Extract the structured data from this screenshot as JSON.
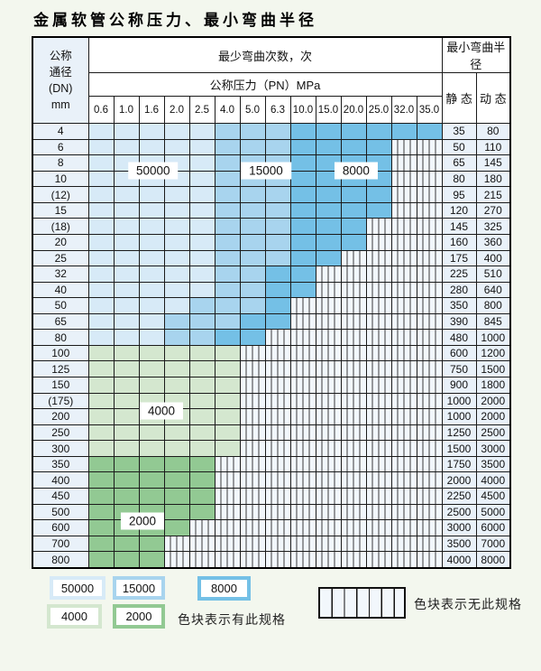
{
  "title": "金属软管公称压力、最小弯曲半径",
  "table": {
    "corner_header": "公称\n通径\n(DN)\nmm",
    "bend_cycles_header": "最少弯曲次数，次",
    "pn_header": "公称压力（PN）MPa",
    "min_radius_header": "最小弯曲半径",
    "static_header": "静 态",
    "dynamic_header": "动 态",
    "pn_columns": [
      "0.6",
      "1.0",
      "1.6",
      "2.0",
      "2.5",
      "4.0",
      "5.0",
      "6.3",
      "10.0",
      "15.0",
      "20.0",
      "25.0",
      "32.0",
      "35.0"
    ],
    "rows": [
      {
        "dn": "4",
        "static": "35",
        "dynamic": "80",
        "grades": [
          [
            "50000",
            5
          ],
          [
            "15000",
            3
          ],
          [
            "8000",
            6
          ]
        ]
      },
      {
        "dn": "6",
        "static": "50",
        "dynamic": "110",
        "grades": [
          [
            "50000",
            5
          ],
          [
            "15000",
            3
          ],
          [
            "8000",
            4
          ],
          [
            "none",
            2
          ]
        ]
      },
      {
        "dn": "8",
        "static": "65",
        "dynamic": "145",
        "grades": [
          [
            "50000",
            5
          ],
          [
            "15000",
            3
          ],
          [
            "8000",
            4
          ],
          [
            "none",
            2
          ]
        ]
      },
      {
        "dn": "10",
        "static": "80",
        "dynamic": "180",
        "grades": [
          [
            "50000",
            5
          ],
          [
            "15000",
            3
          ],
          [
            "8000",
            4
          ],
          [
            "none",
            2
          ]
        ]
      },
      {
        "dn": "(12)",
        "static": "95",
        "dynamic": "215",
        "grades": [
          [
            "50000",
            5
          ],
          [
            "15000",
            3
          ],
          [
            "8000",
            4
          ],
          [
            "none",
            2
          ]
        ]
      },
      {
        "dn": "15",
        "static": "120",
        "dynamic": "270",
        "grades": [
          [
            "50000",
            5
          ],
          [
            "15000",
            3
          ],
          [
            "8000",
            4
          ],
          [
            "none",
            2
          ]
        ]
      },
      {
        "dn": "(18)",
        "static": "145",
        "dynamic": "325",
        "grades": [
          [
            "50000",
            5
          ],
          [
            "15000",
            3
          ],
          [
            "8000",
            3
          ],
          [
            "none",
            3
          ]
        ]
      },
      {
        "dn": "20",
        "static": "160",
        "dynamic": "360",
        "grades": [
          [
            "50000",
            5
          ],
          [
            "15000",
            3
          ],
          [
            "8000",
            3
          ],
          [
            "none",
            3
          ]
        ]
      },
      {
        "dn": "25",
        "static": "175",
        "dynamic": "400",
        "grades": [
          [
            "50000",
            5
          ],
          [
            "15000",
            3
          ],
          [
            "8000",
            2
          ],
          [
            "none",
            4
          ]
        ]
      },
      {
        "dn": "32",
        "static": "225",
        "dynamic": "510",
        "grades": [
          [
            "50000",
            5
          ],
          [
            "15000",
            2
          ],
          [
            "8000",
            2
          ],
          [
            "none",
            5
          ]
        ]
      },
      {
        "dn": "40",
        "static": "280",
        "dynamic": "640",
        "grades": [
          [
            "50000",
            5
          ],
          [
            "15000",
            2
          ],
          [
            "8000",
            2
          ],
          [
            "none",
            5
          ]
        ]
      },
      {
        "dn": "50",
        "static": "350",
        "dynamic": "800",
        "grades": [
          [
            "50000",
            4
          ],
          [
            "15000",
            3
          ],
          [
            "8000",
            1
          ],
          [
            "none",
            6
          ]
        ]
      },
      {
        "dn": "65",
        "static": "390",
        "dynamic": "845",
        "grades": [
          [
            "50000",
            3
          ],
          [
            "15000",
            3
          ],
          [
            "8000",
            2
          ],
          [
            "none",
            6
          ]
        ]
      },
      {
        "dn": "80",
        "static": "480",
        "dynamic": "1000",
        "grades": [
          [
            "50000",
            3
          ],
          [
            "15000",
            2
          ],
          [
            "8000",
            2
          ],
          [
            "none",
            7
          ]
        ]
      },
      {
        "dn": "100",
        "static": "600",
        "dynamic": "1200",
        "grades": [
          [
            "4000",
            6
          ],
          [
            "none",
            8
          ]
        ]
      },
      {
        "dn": "125",
        "static": "750",
        "dynamic": "1500",
        "grades": [
          [
            "4000",
            6
          ],
          [
            "none",
            8
          ]
        ]
      },
      {
        "dn": "150",
        "static": "900",
        "dynamic": "1800",
        "grades": [
          [
            "4000",
            6
          ],
          [
            "none",
            8
          ]
        ]
      },
      {
        "dn": "(175)",
        "static": "1000",
        "dynamic": "2000",
        "grades": [
          [
            "4000",
            6
          ],
          [
            "none",
            8
          ]
        ]
      },
      {
        "dn": "200",
        "static": "1000",
        "dynamic": "2000",
        "grades": [
          [
            "4000",
            6
          ],
          [
            "none",
            8
          ]
        ]
      },
      {
        "dn": "250",
        "static": "1250",
        "dynamic": "2500",
        "grades": [
          [
            "4000",
            6
          ],
          [
            "none",
            8
          ]
        ]
      },
      {
        "dn": "300",
        "static": "1500",
        "dynamic": "3000",
        "grades": [
          [
            "4000",
            6
          ],
          [
            "none",
            8
          ]
        ]
      },
      {
        "dn": "350",
        "static": "1750",
        "dynamic": "3500",
        "grades": [
          [
            "2000",
            5
          ],
          [
            "none",
            9
          ]
        ]
      },
      {
        "dn": "400",
        "static": "2000",
        "dynamic": "4000",
        "grades": [
          [
            "2000",
            5
          ],
          [
            "none",
            9
          ]
        ]
      },
      {
        "dn": "450",
        "static": "2250",
        "dynamic": "4500",
        "grades": [
          [
            "2000",
            5
          ],
          [
            "none",
            9
          ]
        ]
      },
      {
        "dn": "500",
        "static": "2500",
        "dynamic": "5000",
        "grades": [
          [
            "2000",
            5
          ],
          [
            "none",
            9
          ]
        ]
      },
      {
        "dn": "600",
        "static": "3000",
        "dynamic": "6000",
        "grades": [
          [
            "2000",
            4
          ],
          [
            "none",
            10
          ]
        ]
      },
      {
        "dn": "700",
        "static": "3500",
        "dynamic": "7000",
        "grades": [
          [
            "2000",
            3
          ],
          [
            "none",
            11
          ]
        ]
      },
      {
        "dn": "800",
        "static": "4000",
        "dynamic": "8000",
        "grades": [
          [
            "2000",
            3
          ],
          [
            "none",
            11
          ]
        ]
      }
    ],
    "annotations": [
      {
        "text": "50000",
        "col": 2.6,
        "row": 3.88
      },
      {
        "text": "15000",
        "col": 7.07,
        "row": 3.88
      },
      {
        "text": "8000",
        "col": 10.64,
        "row": 3.88
      },
      {
        "text": "4000",
        "col": 2.93,
        "row": 18.43
      },
      {
        "text": "2000",
        "col": 2.18,
        "row": 25.1
      }
    ]
  },
  "legend": {
    "grade_swatches": [
      {
        "label": "50000"
      },
      {
        "label": "15000"
      },
      {
        "label": "8000"
      },
      {
        "label": "4000"
      },
      {
        "label": "2000"
      }
    ],
    "has_spec_note": "色块表示有此规格",
    "no_spec_note": "色块表示无此规格"
  },
  "colors": {
    "50000": "#d7eaf7",
    "15000": "#a8d4ee",
    "8000": "#74c0e6",
    "4000": "#d4e7cf",
    "2000": "#92c993",
    "no_spec_bg": "#f2f7fc",
    "label_cell_bg": "#e9f1f9",
    "grid_line": "#1b1b1b",
    "page_bg": "#f3f7ee"
  }
}
